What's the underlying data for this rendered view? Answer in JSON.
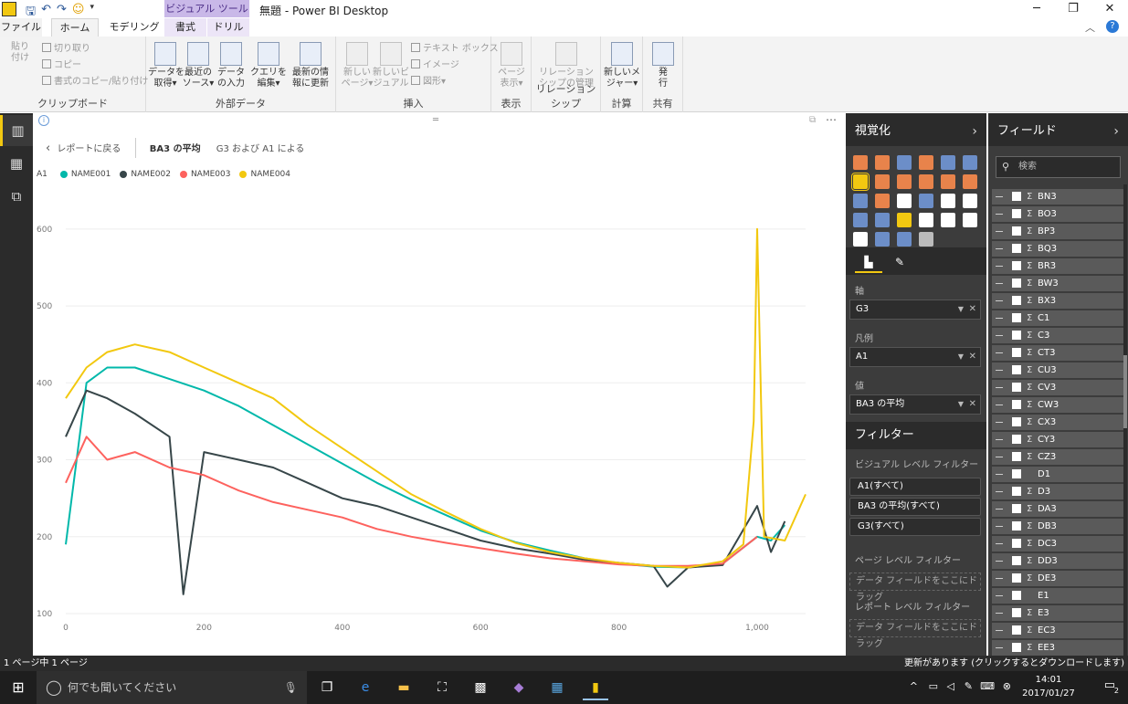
{
  "window": {
    "title": "無題 - Power BI Desktop",
    "context_tab_header": "ビジュアル ツール",
    "qat_icons": [
      "save-icon",
      "undo-icon",
      "redo-icon",
      "smiley-icon",
      "dropdown-icon"
    ]
  },
  "ribbon_tabs": [
    {
      "label": "ファイル",
      "active": false
    },
    {
      "label": "ホーム",
      "active": true
    },
    {
      "label": "モデリング",
      "active": false
    },
    {
      "label": "書式",
      "active": false
    },
    {
      "label": "ドリル",
      "active": false
    }
  ],
  "ribbon": {
    "clipboard": {
      "label": "クリップボード",
      "paste": "貼り\n付け",
      "cut": "切り取り",
      "copy": "コピー",
      "format_painter": "書式のコピー/貼り付け"
    },
    "external_data": {
      "label": "外部データ",
      "get_data": "データを\n取得▾",
      "recent_sources": "最近の\nソース▾",
      "enter_data": "データ\nの入力",
      "edit_queries": "クエリを\n編集▾",
      "refresh": "最新の情\n報に更新"
    },
    "insert": {
      "label": "挿入",
      "new_page": "新しい\nページ▾",
      "new_visual": "新しいビ\nジュアル",
      "text_box": "テキスト ボックス",
      "image": "イメージ",
      "shapes": "図形▾"
    },
    "view": {
      "label": "表示",
      "page_view": "ページ\n表示▾"
    },
    "relationships": {
      "label": "リレーションシップ",
      "manage": "リレーション\nシップの管理"
    },
    "calculations": {
      "label": "計算",
      "new_measure": "新しいメ\nジャー▾"
    },
    "share": {
      "label": "共有",
      "publish": "発\n行"
    }
  },
  "canvas": {
    "back_label": "レポートに戻る",
    "crumb_value": "BA3 の平均",
    "crumb_axis": "G3 および A1 による"
  },
  "chart_data": {
    "type": "line",
    "legend_title": "A1",
    "legend_position": "top-left",
    "grid": true,
    "xlim": [
      0,
      1070
    ],
    "ylim": [
      100,
      620
    ],
    "xticks": [
      0,
      200,
      400,
      600,
      800,
      1000
    ],
    "xtick_labels": [
      "0",
      "200",
      "400",
      "600",
      "800",
      "1,000"
    ],
    "yticks": [
      100,
      200,
      300,
      400,
      500,
      600
    ],
    "ytick_labels": [
      "100",
      "200",
      "300",
      "400",
      "500",
      "600"
    ],
    "series": [
      {
        "name": "NAME001",
        "color": "#01b8aa",
        "x": [
          0,
          30,
          60,
          100,
          150,
          200,
          250,
          300,
          350,
          400,
          450,
          500,
          550,
          600,
          650,
          700,
          750,
          800,
          850,
          900,
          950,
          1000,
          1020,
          1040
        ],
        "y": [
          190,
          400,
          420,
          420,
          405,
          390,
          370,
          345,
          320,
          295,
          270,
          248,
          228,
          208,
          193,
          182,
          172,
          165,
          161,
          160,
          165,
          200,
          195,
          215
        ]
      },
      {
        "name": "NAME002",
        "color": "#374649",
        "x": [
          0,
          30,
          60,
          100,
          150,
          170,
          200,
          250,
          300,
          350,
          400,
          450,
          500,
          550,
          600,
          650,
          700,
          750,
          800,
          850,
          870,
          900,
          950,
          1000,
          1020,
          1040
        ],
        "y": [
          330,
          390,
          380,
          360,
          330,
          125,
          310,
          300,
          290,
          270,
          250,
          240,
          225,
          210,
          195,
          185,
          178,
          170,
          166,
          162,
          135,
          160,
          163,
          240,
          180,
          220
        ]
      },
      {
        "name": "NAME003",
        "color": "#fd625e",
        "x": [
          0,
          30,
          60,
          100,
          150,
          200,
          250,
          300,
          350,
          400,
          450,
          500,
          550,
          600,
          650,
          700,
          750,
          800,
          850,
          900,
          950,
          1000
        ],
        "y": [
          270,
          330,
          300,
          310,
          290,
          280,
          260,
          245,
          235,
          225,
          210,
          200,
          192,
          185,
          178,
          172,
          168,
          164,
          162,
          162,
          165,
          200
        ]
      },
      {
        "name": "NAME004",
        "color": "#f2c80f",
        "x": [
          0,
          30,
          60,
          100,
          150,
          200,
          250,
          300,
          350,
          400,
          450,
          500,
          550,
          600,
          650,
          700,
          750,
          800,
          850,
          900,
          950,
          980,
          995,
          1000,
          1010,
          1040,
          1070
        ],
        "y": [
          380,
          420,
          440,
          450,
          440,
          420,
          400,
          380,
          345,
          315,
          285,
          255,
          232,
          210,
          192,
          180,
          172,
          166,
          162,
          160,
          168,
          190,
          350,
          600,
          200,
          195,
          255
        ]
      }
    ]
  },
  "viz_pane": {
    "title": "視覚化",
    "tabs": [
      "fields-well-icon",
      "format-brush-icon"
    ],
    "well_axis_label": "軸",
    "well_axis_value": "G3",
    "well_legend_label": "凡例",
    "well_legend_value": "A1",
    "well_values_label": "値",
    "well_values_value": "BA3 の平均"
  },
  "filters": {
    "title": "フィルター",
    "visual_level": "ビジュアル レベル フィルター",
    "visual_filters": [
      "A1(すべて)",
      "BA3 の平均(すべて)",
      "G3(すべて)"
    ],
    "page_level": "ページ レベル フィルター",
    "page_drop": "データ フィールドをここにドラッグ",
    "report_level": "レポート レベル フィルター",
    "report_drop": "データ フィールドをここにドラッグ"
  },
  "fields_pane": {
    "title": "フィールド",
    "search_placeholder": "検索",
    "items": [
      {
        "name": "BN3",
        "sigma": true
      },
      {
        "name": "BO3",
        "sigma": true
      },
      {
        "name": "BP3",
        "sigma": true
      },
      {
        "name": "BQ3",
        "sigma": true
      },
      {
        "name": "BR3",
        "sigma": true
      },
      {
        "name": "BW3",
        "sigma": true
      },
      {
        "name": "BX3",
        "sigma": true
      },
      {
        "name": "C1",
        "sigma": true
      },
      {
        "name": "C3",
        "sigma": true
      },
      {
        "name": "CT3",
        "sigma": true
      },
      {
        "name": "CU3",
        "sigma": true
      },
      {
        "name": "CV3",
        "sigma": true
      },
      {
        "name": "CW3",
        "sigma": true
      },
      {
        "name": "CX3",
        "sigma": true
      },
      {
        "name": "CY3",
        "sigma": true
      },
      {
        "name": "CZ3",
        "sigma": true
      },
      {
        "name": "D1",
        "sigma": false
      },
      {
        "name": "D3",
        "sigma": true
      },
      {
        "name": "DA3",
        "sigma": true
      },
      {
        "name": "DB3",
        "sigma": true
      },
      {
        "name": "DC3",
        "sigma": true
      },
      {
        "name": "DD3",
        "sigma": true
      },
      {
        "name": "DE3",
        "sigma": true
      },
      {
        "name": "E1",
        "sigma": false
      },
      {
        "name": "E3",
        "sigma": true
      },
      {
        "name": "EC3",
        "sigma": true
      },
      {
        "name": "EE3",
        "sigma": true
      }
    ]
  },
  "status": {
    "page": "1 ページ中 1 ページ",
    "update": "更新があります (クリックするとダウンロードします)"
  },
  "taskbar": {
    "search_placeholder": "何でも聞いてください",
    "time": "14:01",
    "date": "2017/01/27",
    "notification_count": "2"
  }
}
